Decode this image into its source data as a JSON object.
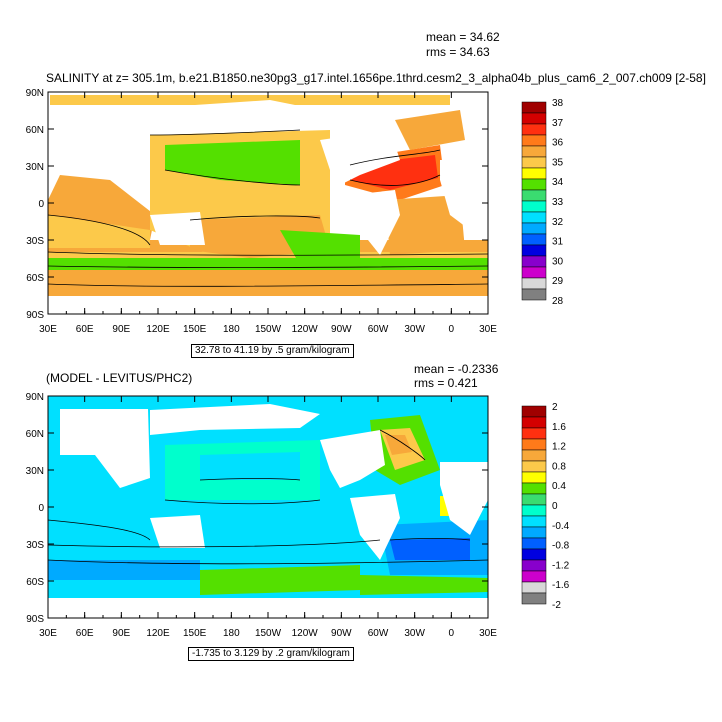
{
  "chart_data": [
    {
      "type": "heatmap",
      "title": "SALINITY at z= 305.1m, b.e21.B1850.ne30pg3_g17.intel.1656pe.1thrd.cesm2_3_alpha04b_plus_cam6_2_007.ch009 [2-58]",
      "stats": {
        "mean": "mean = 34.62",
        "rms": "rms = 34.63"
      },
      "info": "32.78 to 41.19 by .5 gram/kilogram",
      "xlabels": [
        "30E",
        "60E",
        "90E",
        "120E",
        "150E",
        "180",
        "150W",
        "120W",
        "90W",
        "60W",
        "30W",
        "0",
        "30E"
      ],
      "ylabels": [
        "90N",
        "60N",
        "30N",
        "0",
        "30S",
        "60S",
        "90S"
      ],
      "xlim": [
        30,
        390
      ],
      "ylim": [
        -90,
        90
      ],
      "colorbar": {
        "labels": [
          "38",
          "37",
          "36",
          "35",
          "34",
          "33",
          "32",
          "31",
          "30",
          "29",
          "28"
        ],
        "colors": [
          "#a00000",
          "#d40000",
          "#ff3010",
          "#ff7a1a",
          "#f7a83a",
          "#fcc94a",
          "#ffff00",
          "#54e000",
          "#3adc70",
          "#00ffcc",
          "#00e0ff",
          "#00aaff",
          "#0060ff",
          "#0000e0",
          "#8800cc",
          "#cc00cc",
          "#d8d8d8",
          "#808080"
        ]
      },
      "values_summary": {
        "Atlantic subtropics 20N-35N": 36.5,
        "South Pacific 10S-30S": 34.8,
        "North Pacific 20N-45N": 33.5,
        "Southern Ocean 45S-55S": 34.2,
        "Arctic": 34.9
      }
    },
    {
      "type": "heatmap",
      "title": "(MODEL - LEVITUS/PHC2)",
      "stats": {
        "mean": "mean = -0.2336",
        "rms": "rms = 0.421"
      },
      "info": "-1.735 to 3.129 by .2 gram/kilogram",
      "xlabels": [
        "30E",
        "60E",
        "90E",
        "120E",
        "150E",
        "180",
        "150W",
        "120W",
        "90W",
        "60W",
        "30W",
        "0",
        "30E"
      ],
      "ylabels": [
        "90N",
        "60N",
        "30N",
        "0",
        "30S",
        "60S",
        "90S"
      ],
      "xlim": [
        30,
        390
      ],
      "ylim": [
        -90,
        90
      ],
      "colorbar": {
        "labels": [
          "2",
          "1.6",
          "1.2",
          "0.8",
          "0.4",
          "0",
          "-0.4",
          "-0.8",
          "-1.2",
          "-1.6",
          "-2"
        ],
        "colors": [
          "#a00000",
          "#d40000",
          "#ff3010",
          "#ff7a1a",
          "#f7a83a",
          "#fcc94a",
          "#ffff00",
          "#54e000",
          "#3adc70",
          "#00ffcc",
          "#00e0ff",
          "#00aaff",
          "#0060ff",
          "#0000e0",
          "#8800cc",
          "#cc00cc",
          "#d8d8d8",
          "#808080"
        ]
      },
      "values_summary": {
        "Pacific interior": -0.2,
        "South Atlantic 30S-45S": -0.8,
        "North Atlantic 40N-60N": 0.6,
        "Southern Ocean 60S": 0.2
      }
    }
  ]
}
